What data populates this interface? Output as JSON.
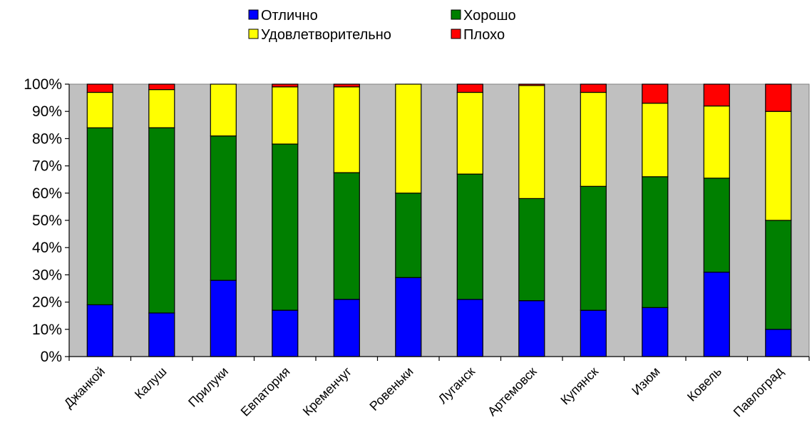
{
  "chart_data": {
    "type": "bar",
    "stacked": true,
    "percent": true,
    "categories": [
      "Джанкой",
      "Калуш",
      "Прилуки",
      "Евпатория",
      "Кременчуг",
      "Ровеньки",
      "Луганск",
      "Артемовск",
      "Купянск",
      "Изюм",
      "Ковель",
      "Павлоград"
    ],
    "series": [
      {
        "name": "Отлично",
        "color": "#0000ff",
        "values": [
          19,
          16,
          28,
          17,
          21,
          29,
          21,
          20.5,
          17,
          18,
          31,
          10
        ]
      },
      {
        "name": "Хорошо",
        "color": "#007f00",
        "values": [
          65,
          68,
          53,
          61,
          46.5,
          31,
          46,
          37.5,
          45.5,
          48,
          34.5,
          40
        ]
      },
      {
        "name": "Удовлетворительно",
        "color": "#ffff00",
        "values": [
          13,
          14,
          19,
          21,
          31.5,
          40,
          30,
          41.5,
          34.5,
          27,
          26.5,
          40
        ]
      },
      {
        "name": "Плохо",
        "color": "#ff0000",
        "values": [
          3,
          2,
          0,
          1,
          1,
          0,
          3,
          0.5,
          3,
          7,
          8,
          10
        ]
      }
    ],
    "yticks": [
      "0%",
      "10%",
      "20%",
      "30%",
      "40%",
      "50%",
      "60%",
      "70%",
      "80%",
      "90%",
      "100%"
    ],
    "ylim": [
      0,
      100
    ],
    "title": "",
    "xlabel": "",
    "ylabel": "",
    "grid": false,
    "plot_background": "#c0c0c0",
    "legend_position": "top"
  }
}
